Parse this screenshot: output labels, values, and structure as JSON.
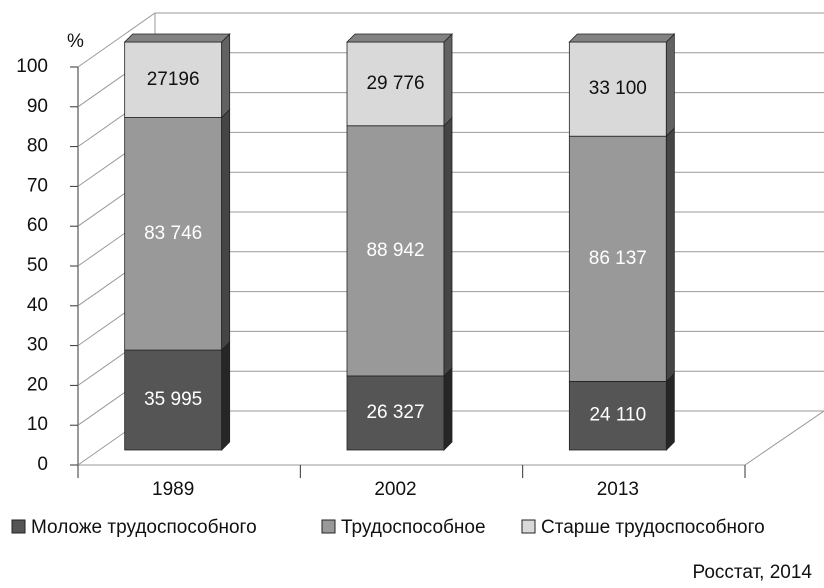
{
  "chart_data": {
    "type": "bar",
    "stacking": "percent",
    "y_unit": "%",
    "categories": [
      "1989",
      "2002",
      "2013"
    ],
    "series": [
      {
        "name": "Моложе трудоспособного",
        "color": "#555555",
        "values": [
          35995,
          26327,
          24110
        ],
        "value_labels": [
          "35 995",
          "26 327",
          "24 110"
        ]
      },
      {
        "name": "Трудоспособное",
        "color": "#999999",
        "values": [
          83746,
          88942,
          86137
        ],
        "value_labels": [
          "83 746",
          "88 942",
          "86 137"
        ]
      },
      {
        "name": "Старше трудоспособного",
        "color": "#d9d9d9",
        "values": [
          27196,
          29776,
          33100
        ],
        "value_labels": [
          "27196",
          "29 776",
          "33 100"
        ]
      }
    ],
    "ylim": [
      0,
      100
    ],
    "yticks": [
      0,
      10,
      20,
      30,
      40,
      50,
      60,
      70,
      80,
      90,
      100
    ],
    "grid": true,
    "legend": "bottom",
    "source": "Росстат, 2014"
  }
}
